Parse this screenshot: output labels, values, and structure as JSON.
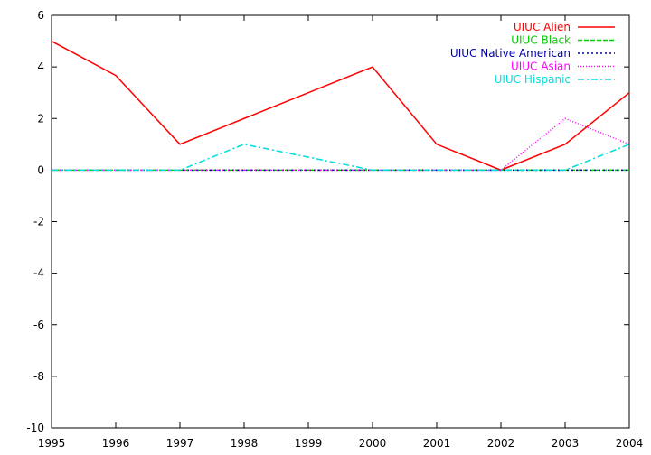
{
  "chart_data": {
    "type": "line",
    "title": "",
    "xlabel": "",
    "ylabel": "",
    "x": [
      1995,
      1996,
      1997,
      1998,
      1999,
      2000,
      2001,
      2002,
      2003,
      2004
    ],
    "xlim": [
      1995,
      2004
    ],
    "ylim": [
      -10,
      6
    ],
    "yticks": [
      6,
      4,
      2,
      0,
      -2,
      -4,
      -6,
      -8,
      -10
    ],
    "xticks": [
      1995,
      1996,
      1997,
      1998,
      1999,
      2000,
      2001,
      2002,
      2003,
      2004
    ],
    "grid": false,
    "legend_position": "top-right",
    "series": [
      {
        "name": "UIUC Alien",
        "color": "#ff0000",
        "dash": "solid",
        "values": [
          5,
          3.6667,
          1,
          2,
          3,
          4,
          1,
          0,
          1,
          3
        ]
      },
      {
        "name": "UIUC Black",
        "color": "#00cc00",
        "dash": "dashed",
        "values": [
          0,
          0,
          0,
          0,
          0,
          0,
          0,
          0,
          0,
          0
        ]
      },
      {
        "name": "UIUC Native American",
        "color": "#0000aa",
        "dash": "dotted",
        "values": [
          0,
          0,
          0,
          0,
          0,
          0,
          0,
          0,
          0,
          0
        ]
      },
      {
        "name": "UIUC Asian",
        "color": "#ff00ff",
        "dash": "fine-dotted",
        "values": [
          0,
          0,
          0,
          0,
          0,
          0,
          0,
          0,
          2,
          1
        ]
      },
      {
        "name": "UIUC Hispanic",
        "color": "#00dddd",
        "dash": "dash-dot",
        "values": [
          0,
          0,
          0,
          1,
          0.5,
          0,
          0,
          0,
          0,
          1
        ]
      }
    ]
  }
}
